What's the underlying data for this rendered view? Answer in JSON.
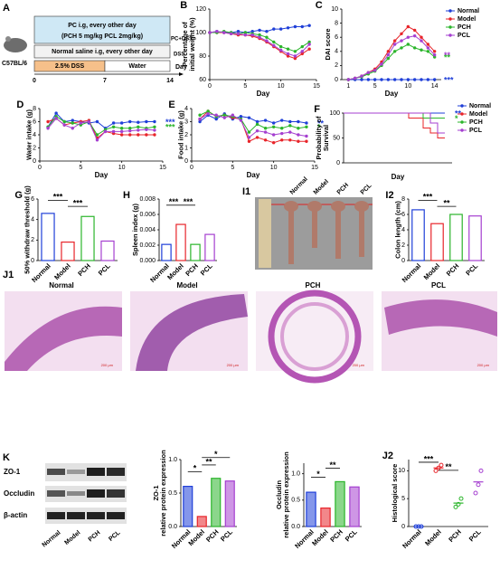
{
  "panels": {
    "A": {
      "label": "A",
      "mouse": "C57BL/6",
      "treatment": "PC i.g, every other day",
      "dose": "(PCH 5 mg/kg PCL 2mg/kg)",
      "treatment_group": "PC+DSS",
      "control": "Normal saline i.g, every other day",
      "control_group": "DSS",
      "dss": "2.5% DSS",
      "water": "Water",
      "day_label": "Day",
      "days": [
        "0",
        "7",
        "14"
      ]
    },
    "I1": {
      "label": "I1",
      "groups": [
        "Normal",
        "Model",
        "PCH",
        "PCL"
      ]
    },
    "J1": {
      "label": "J1",
      "groups": [
        "Normal",
        "Model",
        "PCH",
        "PCL"
      ],
      "scale": "200 μm"
    },
    "K": {
      "label": "K",
      "proteins": [
        "ZO-1",
        "Occludin",
        "β-actin"
      ],
      "groups": [
        "Normal",
        "Model",
        "PCH",
        "PCL"
      ]
    }
  },
  "chart_data": [
    {
      "label": "B",
      "type": "line",
      "y_label": [
        "Percentage of",
        "initial weight (%)"
      ],
      "x_label": "Day",
      "x": [
        0,
        1,
        2,
        3,
        4,
        5,
        6,
        7,
        8,
        9,
        10,
        11,
        12,
        13,
        14
      ],
      "xlim": [
        0,
        15
      ],
      "xticks": [
        0,
        5,
        10,
        15
      ],
      "ylim": [
        60,
        120
      ],
      "yticks": [
        60,
        80,
        100,
        120
      ],
      "series": [
        {
          "name": "Normal",
          "color": "#1f3fd8",
          "values": [
            100,
            101,
            100,
            100,
            101,
            100,
            101,
            102,
            101,
            103,
            103,
            104,
            105,
            105,
            106
          ]
        },
        {
          "name": "Model",
          "color": "#e8242a",
          "values": [
            100,
            100,
            100,
            99,
            98,
            98,
            97,
            95,
            92,
            88,
            84,
            80,
            78,
            82,
            86
          ]
        },
        {
          "name": "PCH",
          "color": "#2bb52b",
          "values": [
            100,
            100,
            101,
            100,
            99,
            100,
            99,
            98,
            96,
            92,
            88,
            86,
            84,
            88,
            92
          ]
        },
        {
          "name": "PCL",
          "color": "#a53fd0",
          "values": [
            100,
            101,
            100,
            99,
            99,
            98,
            98,
            96,
            93,
            89,
            85,
            82,
            80,
            84,
            90
          ]
        }
      ]
    },
    {
      "label": "C",
      "type": "line",
      "y_label": [
        "DAI score"
      ],
      "x_label": "Day",
      "x": [
        1,
        2,
        3,
        4,
        5,
        6,
        7,
        8,
        9,
        10,
        11,
        12,
        13,
        14
      ],
      "xlim": [
        0,
        15
      ],
      "xticks": [
        1,
        5,
        10,
        14
      ],
      "ylim": [
        0,
        10
      ],
      "yticks": [
        0,
        2,
        4,
        6,
        8,
        10
      ],
      "legend": "right",
      "series": [
        {
          "name": "Normal",
          "color": "#1f3fd8",
          "values": [
            0,
            0,
            0,
            0,
            0,
            0,
            0,
            0,
            0,
            0,
            0,
            0,
            0,
            0
          ]
        },
        {
          "name": "Model",
          "color": "#e8242a",
          "values": [
            0,
            0.2,
            0.5,
            1,
            1.5,
            2.5,
            4,
            5.5,
            6.5,
            7.5,
            7,
            6,
            5,
            4
          ]
        },
        {
          "name": "PCH",
          "color": "#2bb52b",
          "values": [
            0,
            0.2,
            0.4,
            0.8,
            1.2,
            2,
            3,
            4,
            4.5,
            5,
            4.5,
            4.2,
            4,
            3.2
          ]
        },
        {
          "name": "PCL",
          "color": "#a53fd0",
          "values": [
            0,
            0.2,
            0.5,
            1,
            1.3,
            2.2,
            3.5,
            5,
            5.5,
            6,
            6.2,
            5.5,
            4.5,
            3.5
          ]
        }
      ],
      "annotations": [
        {
          "text": "**",
          "color": "#2bb52b"
        },
        {
          "text": "**",
          "color": "#a53fd0"
        },
        {
          "text": "***",
          "color": "#1f3fd8"
        }
      ]
    },
    {
      "label": "D",
      "type": "line",
      "y_label": [
        "Water intake (g)"
      ],
      "x_label": "Day",
      "x": [
        1,
        2,
        3,
        4,
        5,
        6,
        7,
        8,
        9,
        10,
        11,
        12,
        13,
        14
      ],
      "xlim": [
        0,
        15
      ],
      "xticks": [
        0,
        5,
        10,
        15
      ],
      "ylim": [
        0,
        8
      ],
      "yticks": [
        0,
        2,
        4,
        6,
        8
      ],
      "series": [
        {
          "name": "Normal",
          "color": "#1f3fd8",
          "values": [
            5.2,
            7.3,
            6,
            6.2,
            6,
            5.8,
            6,
            5,
            5.8,
            5.8,
            6,
            5.9,
            6,
            6
          ]
        },
        {
          "name": "Model",
          "color": "#e8242a",
          "values": [
            6,
            6.5,
            5.5,
            5.8,
            6,
            6.2,
            3.5,
            4.5,
            4.2,
            4,
            4,
            4,
            4,
            4
          ]
        },
        {
          "name": "PCH",
          "color": "#2bb52b",
          "values": [
            5.2,
            6.8,
            6,
            5.8,
            5.5,
            6,
            4,
            4.8,
            5.2,
            5,
            5,
            5.2,
            5,
            5.2
          ]
        },
        {
          "name": "PCL",
          "color": "#a53fd0",
          "values": [
            5,
            6.5,
            5.5,
            5,
            5.8,
            6,
            3.2,
            4.5,
            4.5,
            4.5,
            4.6,
            4.7,
            4.8,
            4.7
          ]
        }
      ],
      "annotations": [
        {
          "text": "***",
          "color": "#1f3fd8"
        },
        {
          "text": "***",
          "color": "#2bb52b"
        }
      ]
    },
    {
      "label": "E",
      "type": "line",
      "y_label": [
        "Food intake (g)"
      ],
      "x_label": "Day",
      "x": [
        1,
        2,
        3,
        4,
        5,
        6,
        7,
        8,
        9,
        10,
        11,
        12,
        13,
        14
      ],
      "xlim": [
        0,
        15
      ],
      "xticks": [
        0,
        5,
        10,
        15
      ],
      "ylim": [
        0,
        4
      ],
      "yticks": [
        0,
        1,
        2,
        3,
        4
      ],
      "series": [
        {
          "name": "Normal",
          "color": "#1f3fd8",
          "values": [
            3,
            3.5,
            3.2,
            3.6,
            3.2,
            3.4,
            3.3,
            3,
            3.1,
            2.9,
            3.1,
            3,
            3,
            2.9
          ]
        },
        {
          "name": "Model",
          "color": "#e8242a",
          "values": [
            3.2,
            3.8,
            3.4,
            3.5,
            3.3,
            3.2,
            1.5,
            1.8,
            1.6,
            1.4,
            1.6,
            1.6,
            1.5,
            1.5
          ]
        },
        {
          "name": "PCH",
          "color": "#2bb52b",
          "values": [
            3.5,
            3.8,
            3.4,
            3.5,
            3.4,
            3.2,
            2.2,
            2.8,
            2.5,
            2.6,
            2.5,
            2.7,
            2.5,
            2.6
          ]
        },
        {
          "name": "PCL",
          "color": "#a53fd0",
          "values": [
            3.2,
            3.6,
            3.5,
            3.3,
            3.5,
            3.1,
            1.8,
            2.3,
            2.2,
            2,
            2.1,
            2.2,
            2,
            1.9
          ]
        }
      ],
      "annotations": [
        {
          "text": "**",
          "color": "#1f3fd8"
        },
        {
          "text": "*",
          "color": "#2bb52b"
        }
      ]
    },
    {
      "label": "F",
      "type": "step",
      "y_label": [
        "Probability of",
        "Survival"
      ],
      "x_label": "Day",
      "x": [
        0,
        9,
        11,
        12,
        13,
        14
      ],
      "xlim": [
        0,
        15
      ],
      "ylim": [
        0,
        100
      ],
      "yticks": [
        0,
        50,
        100
      ],
      "legend": "right",
      "series": [
        {
          "name": "Normal",
          "color": "#1f3fd8",
          "values": [
            100,
            100,
            100,
            100,
            100,
            100
          ]
        },
        {
          "name": "Model",
          "color": "#e8242a",
          "values": [
            100,
            90,
            70,
            60,
            50,
            50
          ]
        },
        {
          "name": "PCH",
          "color": "#2bb52b",
          "values": [
            100,
            100,
            90,
            90,
            90,
            90
          ]
        },
        {
          "name": "PCL",
          "color": "#a53fd0",
          "values": [
            100,
            100,
            100,
            80,
            60,
            60
          ]
        }
      ],
      "annotations": [
        {
          "text": "**",
          "color": "#1f3fd8"
        },
        {
          "text": "*",
          "color": "#2bb52b"
        }
      ]
    },
    {
      "label": "G",
      "type": "bar",
      "y_label": [
        "50% withdraw threshold (g)"
      ],
      "categories": [
        "Normal",
        "Model",
        "PCH",
        "PCL"
      ],
      "values": [
        4.6,
        1.8,
        4.3,
        1.9
      ],
      "colors": [
        "#1f3fd8",
        "#e8242a",
        "#2bb52b",
        "#a53fd0"
      ],
      "ylim": [
        0,
        6
      ],
      "yticks": [
        0,
        2,
        4,
        6
      ],
      "annotations": [
        "***",
        "***"
      ]
    },
    {
      "label": "H",
      "type": "bar",
      "y_label": [
        "Spleen index (g)"
      ],
      "categories": [
        "Normal",
        "Model",
        "PCH",
        "PCL"
      ],
      "values": [
        0.0021,
        0.0047,
        0.0021,
        0.0034
      ],
      "colors": [
        "#1f3fd8",
        "#e8242a",
        "#2bb52b",
        "#a53fd0"
      ],
      "ylim": [
        0,
        0.008
      ],
      "yticks": [
        {
          "value": 0,
          "label": "0.000"
        },
        0.002,
        0.004,
        0.006,
        0.008
      ],
      "annotations": [
        "***",
        "***"
      ]
    },
    {
      "label": "I2",
      "type": "bar",
      "y_label": [
        "Colon length (cm)"
      ],
      "categories": [
        "Normal",
        "Model",
        "PCH",
        "PCL"
      ],
      "values": [
        6.6,
        4.8,
        6.0,
        5.8
      ],
      "colors": [
        "#1f3fd8",
        "#e8242a",
        "#2bb52b",
        "#a53fd0"
      ],
      "ylim": [
        0,
        8
      ],
      "yticks": [
        0,
        2,
        4,
        6,
        8
      ],
      "annotations": [
        "***",
        "**"
      ]
    },
    {
      "type": "bar",
      "filled": true,
      "y_label": [
        "ZO-1",
        "relative protein expression"
      ],
      "categories": [
        "Normal",
        "Model",
        "PCH",
        "PCL"
      ],
      "values": [
        0.6,
        0.15,
        0.72,
        0.68
      ],
      "colors": [
        "#1f3fd8",
        "#e8242a",
        "#2bb52b",
        "#a53fd0"
      ],
      "ylim": [
        0,
        1.0
      ],
      "yticks": [
        {
          "value": 0,
          "label": "0.0"
        },
        0.5,
        {
          "value": 1,
          "label": "1.0"
        }
      ],
      "annotations": [
        "*",
        "**",
        "*"
      ]
    },
    {
      "type": "bar",
      "filled": true,
      "y_label": [
        "Occludin",
        "relative protein expression"
      ],
      "categories": [
        "Normal",
        "Model",
        "PCH",
        "PCL"
      ],
      "values": [
        0.65,
        0.35,
        0.85,
        0.75
      ],
      "colors": [
        "#1f3fd8",
        "#e8242a",
        "#2bb52b",
        "#a53fd0"
      ],
      "ylim": [
        0,
        1.2
      ],
      "yticks": [
        {
          "value": 0,
          "label": "0.0"
        },
        0.5,
        {
          "value": 1,
          "label": "1.0"
        }
      ],
      "annotations": [
        "*",
        "**"
      ]
    },
    {
      "label": "J2",
      "type": "dot",
      "y_label": [
        "Histological score"
      ],
      "categories": [
        "Normal",
        "Model",
        "PCH",
        "PCL"
      ],
      "values": [
        0,
        10.5,
        4.2,
        8
      ],
      "points": [
        [
          0,
          0,
          0
        ],
        [
          10,
          10.5,
          11
        ],
        [
          3.5,
          4,
          5
        ],
        [
          6,
          7.5,
          10
        ]
      ],
      "colors": [
        "#1f3fd8",
        "#e8242a",
        "#2bb52b",
        "#a53fd0"
      ],
      "ylim": [
        0,
        12
      ],
      "yticks": [
        0,
        5,
        10
      ],
      "annotations": [
        "***",
        "**"
      ]
    }
  ]
}
